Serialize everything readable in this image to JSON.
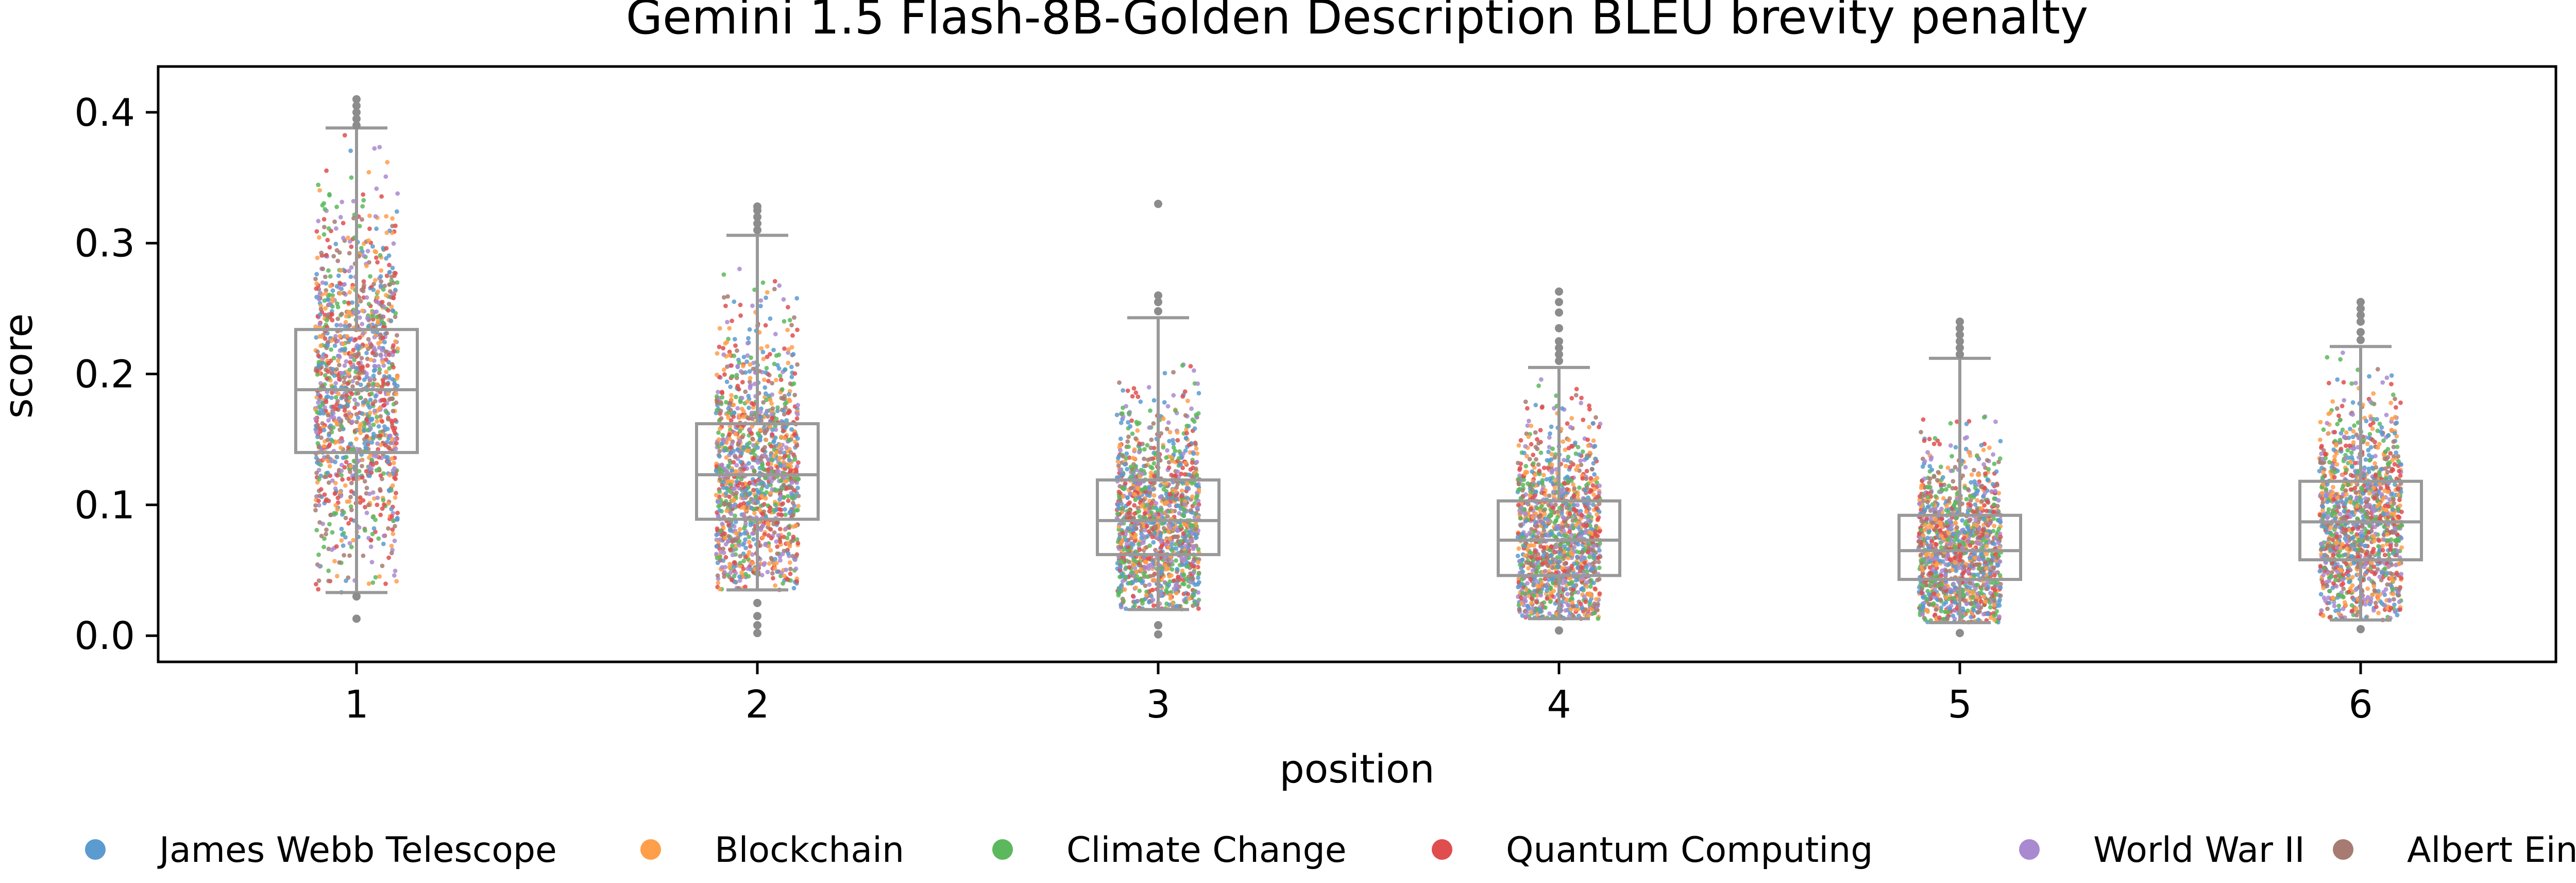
{
  "chart_data": {
    "type": "box+strip",
    "title": "Gemini 1.5 Flash-8B-Golden Description BLEU brevity penalty",
    "xlabel": "position",
    "ylabel": "score",
    "categories": [
      "1",
      "2",
      "3",
      "4",
      "5",
      "6"
    ],
    "ylim": [
      -0.02,
      0.435
    ],
    "yticks": [
      0.0,
      0.1,
      0.2,
      0.3,
      0.4
    ],
    "ytick_labels": [
      "0.0",
      "0.1",
      "0.2",
      "0.3",
      "0.4"
    ],
    "grid": false,
    "legend_position": "bottom",
    "boxes": [
      {
        "position": "1",
        "whisker_low": 0.033,
        "q1": 0.14,
        "median": 0.188,
        "q3": 0.234,
        "whisker_high": 0.388,
        "outliers": [
          0.39,
          0.395,
          0.4,
          0.405,
          0.41,
          0.013,
          0.03
        ]
      },
      {
        "position": "2",
        "whisker_low": 0.035,
        "q1": 0.089,
        "median": 0.123,
        "q3": 0.162,
        "whisker_high": 0.306,
        "outliers": [
          0.31,
          0.315,
          0.32,
          0.325,
          0.328,
          0.002,
          0.008,
          0.015,
          0.025
        ]
      },
      {
        "position": "3",
        "whisker_low": 0.02,
        "q1": 0.062,
        "median": 0.088,
        "q3": 0.119,
        "whisker_high": 0.243,
        "outliers": [
          0.248,
          0.255,
          0.26,
          0.33,
          0.001,
          0.008
        ]
      },
      {
        "position": "4",
        "whisker_low": 0.013,
        "q1": 0.046,
        "median": 0.073,
        "q3": 0.103,
        "whisker_high": 0.205,
        "outliers": [
          0.21,
          0.215,
          0.22,
          0.225,
          0.235,
          0.247,
          0.255,
          0.263,
          0.004
        ]
      },
      {
        "position": "5",
        "whisker_low": 0.01,
        "q1": 0.043,
        "median": 0.065,
        "q3": 0.092,
        "whisker_high": 0.212,
        "outliers": [
          0.215,
          0.22,
          0.225,
          0.23,
          0.235,
          0.24,
          0.002
        ]
      },
      {
        "position": "6",
        "whisker_low": 0.012,
        "q1": 0.058,
        "median": 0.087,
        "q3": 0.118,
        "whisker_high": 0.221,
        "outliers": [
          0.226,
          0.232,
          0.24,
          0.245,
          0.25,
          0.255,
          0.005
        ]
      }
    ],
    "legend": [
      {
        "name": "James Webb Telescope",
        "color": "#5b9bd0"
      },
      {
        "name": "Blockchain",
        "color": "#ff9f4a"
      },
      {
        "name": "Climate Change",
        "color": "#5cb85c"
      },
      {
        "name": "Quantum Computing",
        "color": "#e04d4f"
      },
      {
        "name": "World War II",
        "color": "#a98ad0"
      },
      {
        "name": "Albert Einstein",
        "color": "#a77b72"
      }
    ],
    "box_color": "#999999",
    "outlier_color": "#8c8c8c"
  }
}
